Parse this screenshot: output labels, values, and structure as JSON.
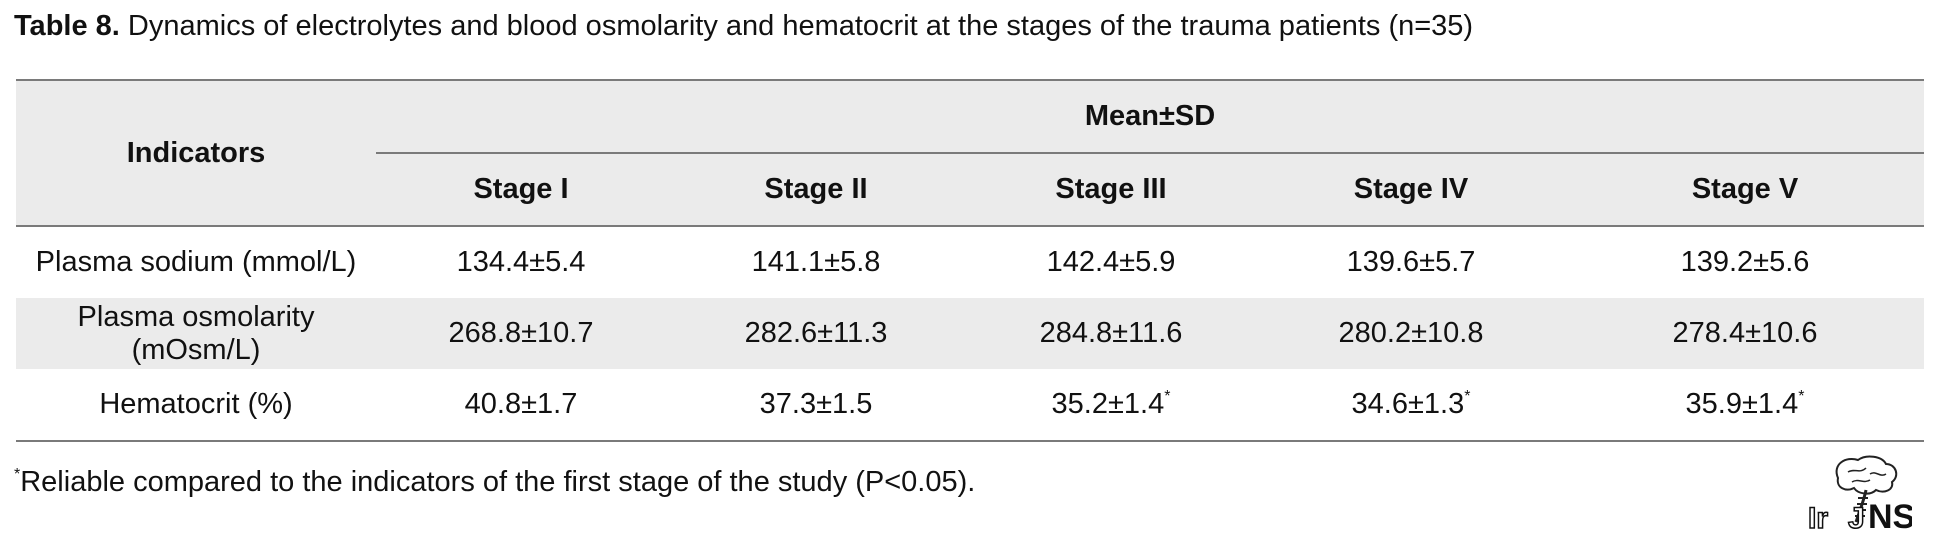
{
  "caption": {
    "label": "Table 8.",
    "text": " Dynamics of electrolytes and blood osmolarity and hematocrit at the stages of the trauma patients (n=35)"
  },
  "table": {
    "row_header": "Indicators",
    "group_header": "Mean±SD",
    "columns": [
      "Stage I",
      "Stage II",
      "Stage III",
      "Stage IV",
      "Stage V"
    ],
    "rows": [
      {
        "indicator": "Plasma sodium (mmol/L)",
        "cells": [
          {
            "value": "134.4±5.4",
            "mark": ""
          },
          {
            "value": "141.1±5.8",
            "mark": ""
          },
          {
            "value": "142.4±5.9",
            "mark": ""
          },
          {
            "value": "139.6±5.7",
            "mark": ""
          },
          {
            "value": "139.2±5.6",
            "mark": ""
          }
        ]
      },
      {
        "indicator": "Plasma osmolarity (mOsm/L)",
        "cells": [
          {
            "value": "268.8±10.7",
            "mark": ""
          },
          {
            "value": "282.6±11.3",
            "mark": ""
          },
          {
            "value": "284.8±11.6",
            "mark": ""
          },
          {
            "value": "280.2±10.8",
            "mark": ""
          },
          {
            "value": "278.4±10.6",
            "mark": ""
          }
        ]
      },
      {
        "indicator": "Hematocrit (%)",
        "cells": [
          {
            "value": "40.8±1.7",
            "mark": ""
          },
          {
            "value": "37.3±1.5",
            "mark": ""
          },
          {
            "value": "35.2±1.4",
            "mark": "*"
          },
          {
            "value": "34.6±1.3",
            "mark": "*"
          },
          {
            "value": "35.9±1.4",
            "mark": "*"
          }
        ]
      }
    ]
  },
  "footnote": {
    "mark": "*",
    "text": "Reliable compared to the indicators of the first stage of the study (P<0.05)."
  },
  "logo": {
    "text": "IrJNS",
    "icon": "brain-spine-logo"
  }
}
